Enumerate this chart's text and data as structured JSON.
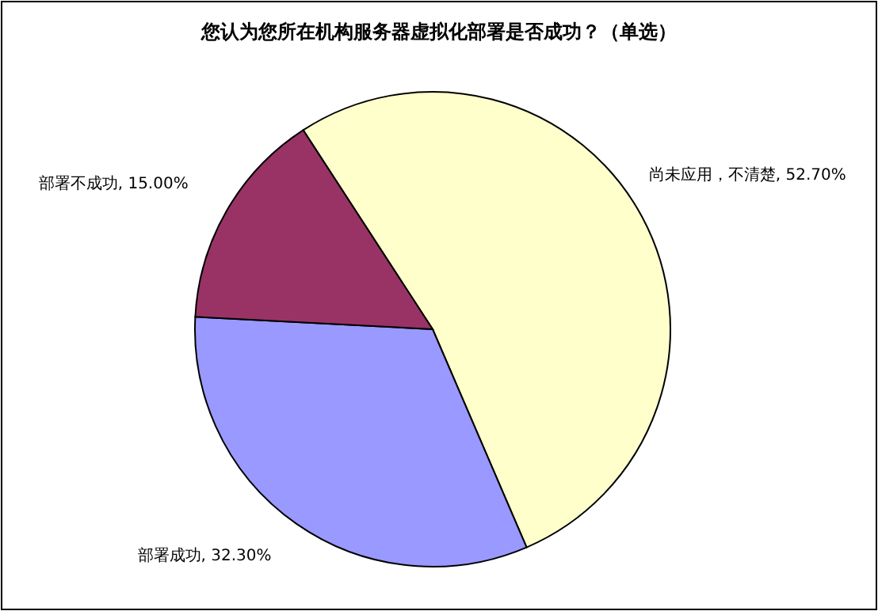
{
  "chart_data": {
    "type": "pie",
    "title": "您认为您所在机构服务器虚拟化部署是否成功？（单选）",
    "categories": [
      "尚未应用，不清楚",
      "部署成功",
      "部署不成功"
    ],
    "values": [
      52.7,
      32.3,
      15.0
    ],
    "value_labels": [
      "52.70%",
      "32.30%",
      "15.00%"
    ],
    "colors": [
      "#ffffcc",
      "#9999ff",
      "#993366"
    ],
    "legend": false
  }
}
